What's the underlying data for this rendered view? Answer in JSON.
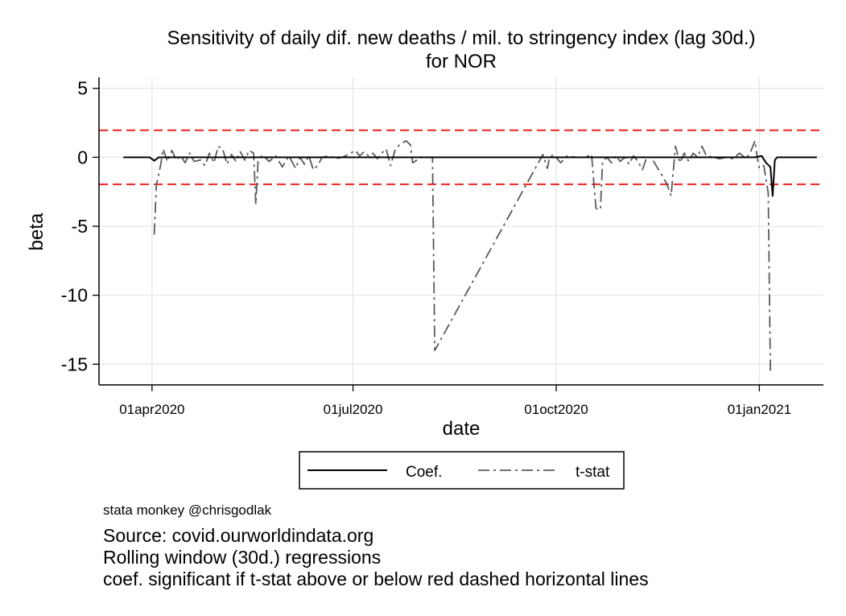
{
  "chart_data": {
    "type": "line",
    "title": "Sensitivity of daily dif. new deaths / mil. to stringency index (lag 30d.)",
    "subtitle": "for NOR",
    "xlabel": "date",
    "ylabel": "beta",
    "xlim": [
      "2020-03-08",
      "2021-01-30"
    ],
    "ylim": [
      -16.5,
      5.8
    ],
    "x_ticks": [
      {
        "date": "2020-04-01",
        "label": "01apr2020"
      },
      {
        "date": "2020-07-01",
        "label": "01jul2020"
      },
      {
        "date": "2020-10-01",
        "label": "01oct2020"
      },
      {
        "date": "2021-01-01",
        "label": "01jan2021"
      }
    ],
    "y_ticks": [
      {
        "value": 5,
        "label": "5"
      },
      {
        "value": 0,
        "label": "0"
      },
      {
        "value": -5,
        "label": "-5"
      },
      {
        "value": -10,
        "label": "-10"
      },
      {
        "value": -15,
        "label": "-15"
      }
    ],
    "grid": true,
    "reference_lines": [
      {
        "y": 1.96,
        "color": "#e8251f",
        "style": "dashed"
      },
      {
        "y": -1.96,
        "color": "#e8251f",
        "style": "dashed"
      }
    ],
    "series": [
      {
        "name": "Coef.",
        "color": "#000000",
        "style": "solid",
        "points": [
          [
            "2020-03-19",
            0
          ],
          [
            "2020-03-31",
            0
          ],
          [
            "2020-04-02",
            -0.25
          ],
          [
            "2020-04-04",
            0
          ],
          [
            "2020-12-30",
            0
          ],
          [
            "2021-01-02",
            0.1
          ],
          [
            "2021-01-04",
            -0.4
          ],
          [
            "2021-01-06",
            -0.7
          ],
          [
            "2021-01-07",
            -2.8
          ],
          [
            "2021-01-08",
            -0.2
          ],
          [
            "2021-01-09",
            0
          ],
          [
            "2021-01-27",
            0
          ]
        ]
      },
      {
        "name": "t-stat",
        "color": "#5a5a5a",
        "style": "dashdot",
        "points": [
          [
            "2020-04-02",
            -5.6
          ],
          [
            "2020-04-03",
            -2.0
          ],
          [
            "2020-04-05",
            -0.5
          ],
          [
            "2020-04-06",
            0.6
          ],
          [
            "2020-04-08",
            -0.3
          ],
          [
            "2020-04-10",
            0.5
          ],
          [
            "2020-04-12",
            -0.2
          ],
          [
            "2020-04-14",
            0.1
          ],
          [
            "2020-04-16",
            -0.4
          ],
          [
            "2020-04-18",
            0.3
          ],
          [
            "2020-04-20",
            -0.3
          ],
          [
            "2020-04-23",
            -0.2
          ],
          [
            "2020-04-25",
            -0.6
          ],
          [
            "2020-04-27",
            0.3
          ],
          [
            "2020-04-29",
            -0.4
          ],
          [
            "2020-05-01",
            0.8
          ],
          [
            "2020-05-03",
            0.6
          ],
          [
            "2020-05-05",
            -0.5
          ],
          [
            "2020-05-07",
            0.2
          ],
          [
            "2020-05-09",
            -0.3
          ],
          [
            "2020-05-11",
            0.4
          ],
          [
            "2020-05-13",
            -0.2
          ],
          [
            "2020-05-15",
            0.5
          ],
          [
            "2020-05-17",
            0.3
          ],
          [
            "2020-05-18",
            -3.4
          ],
          [
            "2020-05-19",
            -0.3
          ],
          [
            "2020-05-21",
            0.2
          ],
          [
            "2020-05-24",
            -0.3
          ],
          [
            "2020-05-27",
            0.1
          ],
          [
            "2020-05-30",
            -0.7
          ],
          [
            "2020-06-02",
            0.1
          ],
          [
            "2020-06-05",
            -0.8
          ],
          [
            "2020-06-07",
            0.0
          ],
          [
            "2020-06-09",
            -0.5
          ],
          [
            "2020-06-11",
            0.1
          ],
          [
            "2020-06-13",
            -0.9
          ],
          [
            "2020-06-15",
            -0.6
          ],
          [
            "2020-06-17",
            0.0
          ],
          [
            "2020-06-20",
            0.1
          ],
          [
            "2020-06-23",
            -0.1
          ],
          [
            "2020-06-26",
            0.0
          ],
          [
            "2020-06-29",
            0.2
          ],
          [
            "2020-07-02",
            0.5
          ],
          [
            "2020-07-04",
            0.1
          ],
          [
            "2020-07-06",
            0.4
          ],
          [
            "2020-07-08",
            0.1
          ],
          [
            "2020-07-10",
            0.3
          ],
          [
            "2020-07-12",
            -0.1
          ],
          [
            "2020-07-14",
            0.3
          ],
          [
            "2020-07-16",
            0.6
          ],
          [
            "2020-07-18",
            -0.6
          ],
          [
            "2020-07-20",
            0.5
          ],
          [
            "2020-07-22",
            0.9
          ],
          [
            "2020-07-25",
            1.2
          ],
          [
            "2020-07-27",
            0.9
          ],
          [
            "2020-07-28",
            -0.4
          ],
          [
            "2020-08-01",
            0.0
          ],
          [
            "2020-08-06",
            0.0
          ],
          [
            "2020-08-07",
            -14.0
          ],
          [
            "2020-09-25",
            0.2
          ],
          [
            "2020-09-27",
            -0.8
          ],
          [
            "2020-09-28",
            0.0
          ],
          [
            "2020-09-30",
            0.2
          ],
          [
            "2020-10-03",
            -0.4
          ],
          [
            "2020-10-06",
            0.1
          ],
          [
            "2020-10-10",
            0.0
          ],
          [
            "2020-10-14",
            0.0
          ],
          [
            "2020-10-17",
            0.2
          ],
          [
            "2020-10-19",
            -3.7
          ],
          [
            "2020-10-21",
            -3.8
          ],
          [
            "2020-10-22",
            -0.3
          ],
          [
            "2020-10-24",
            0.0
          ],
          [
            "2020-10-26",
            -0.4
          ],
          [
            "2020-10-28",
            0.1
          ],
          [
            "2020-10-30",
            -0.3
          ],
          [
            "2020-11-01",
            0.0
          ],
          [
            "2020-11-03",
            -0.5
          ],
          [
            "2020-11-05",
            0.1
          ],
          [
            "2020-11-07",
            -0.3
          ],
          [
            "2020-11-09",
            -0.9
          ],
          [
            "2020-11-11",
            0.0
          ],
          [
            "2020-11-13",
            0.0
          ],
          [
            "2020-11-16",
            -0.8
          ],
          [
            "2020-11-20",
            -1.9
          ],
          [
            "2020-11-22",
            -2.8
          ],
          [
            "2020-11-24",
            0.8
          ],
          [
            "2020-11-26",
            -0.4
          ],
          [
            "2020-11-28",
            0.3
          ],
          [
            "2020-11-30",
            -0.3
          ],
          [
            "2020-12-02",
            0.3
          ],
          [
            "2020-12-04",
            0.0
          ],
          [
            "2020-12-06",
            0.8
          ],
          [
            "2020-12-08",
            0.1
          ],
          [
            "2020-12-11",
            0.0
          ],
          [
            "2020-12-14",
            -0.1
          ],
          [
            "2020-12-17",
            0.0
          ],
          [
            "2020-12-20",
            -0.1
          ],
          [
            "2020-12-23",
            0.3
          ],
          [
            "2020-12-26",
            -0.1
          ],
          [
            "2020-12-28",
            0.4
          ],
          [
            "2020-12-30",
            1.2
          ],
          [
            "2020-12-31",
            0.0
          ],
          [
            "2021-01-01",
            -0.8
          ],
          [
            "2021-01-03",
            -0.6
          ],
          [
            "2021-01-05",
            -2.6
          ],
          [
            "2021-01-06",
            -15.5
          ]
        ]
      }
    ],
    "legend_position": "bottom"
  },
  "notes": {
    "credit": "stata monkey @chrisgodlak",
    "source": "Source: covid.ourworldindata.org",
    "method": "Rolling window (30d.) regressions",
    "explanation": "coef. significant if t-stat above or below red dashed horizontal lines"
  }
}
